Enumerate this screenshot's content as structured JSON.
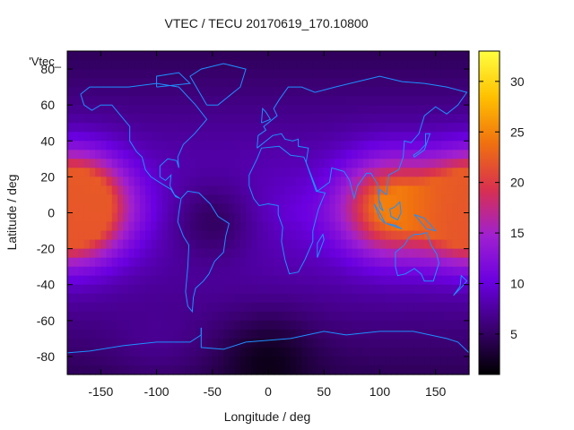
{
  "chart_data": {
    "type": "heatmap",
    "title": "VTEC / TECU 20170619_170.10800",
    "xlabel": "Longitude / deg",
    "ylabel": "Latitude / deg",
    "legend_label": "'Vtec_",
    "xlim": [
      -180,
      180
    ],
    "ylim": [
      -90,
      90
    ],
    "x_ticks": [
      -150,
      -100,
      -50,
      0,
      50,
      100,
      150
    ],
    "y_ticks": [
      -80,
      -60,
      -40,
      -20,
      0,
      20,
      40,
      60,
      80
    ],
    "colorbar": {
      "range": [
        1,
        33
      ],
      "ticks": [
        5,
        10,
        15,
        20,
        25,
        30
      ],
      "palette": [
        "#000000",
        "#3a0070",
        "#6a00e0",
        "#a020d0",
        "#d83050",
        "#f07010",
        "#ffc000",
        "#ffff40"
      ]
    },
    "coastline_color": "#1e90ff",
    "grid": false,
    "features": [
      {
        "lon": -170,
        "lat": 5,
        "vtec": 23
      },
      {
        "lon": 110,
        "lat": 3,
        "vtec": 25
      },
      {
        "lon": 178,
        "lat": 0,
        "vtec": 21
      },
      {
        "lon": -50,
        "lat": -5,
        "vtec": 5
      },
      {
        "lon": -100,
        "lat": -65,
        "vtec": 7
      },
      {
        "lon": 0,
        "lat": -85,
        "vtec": 2
      }
    ]
  }
}
